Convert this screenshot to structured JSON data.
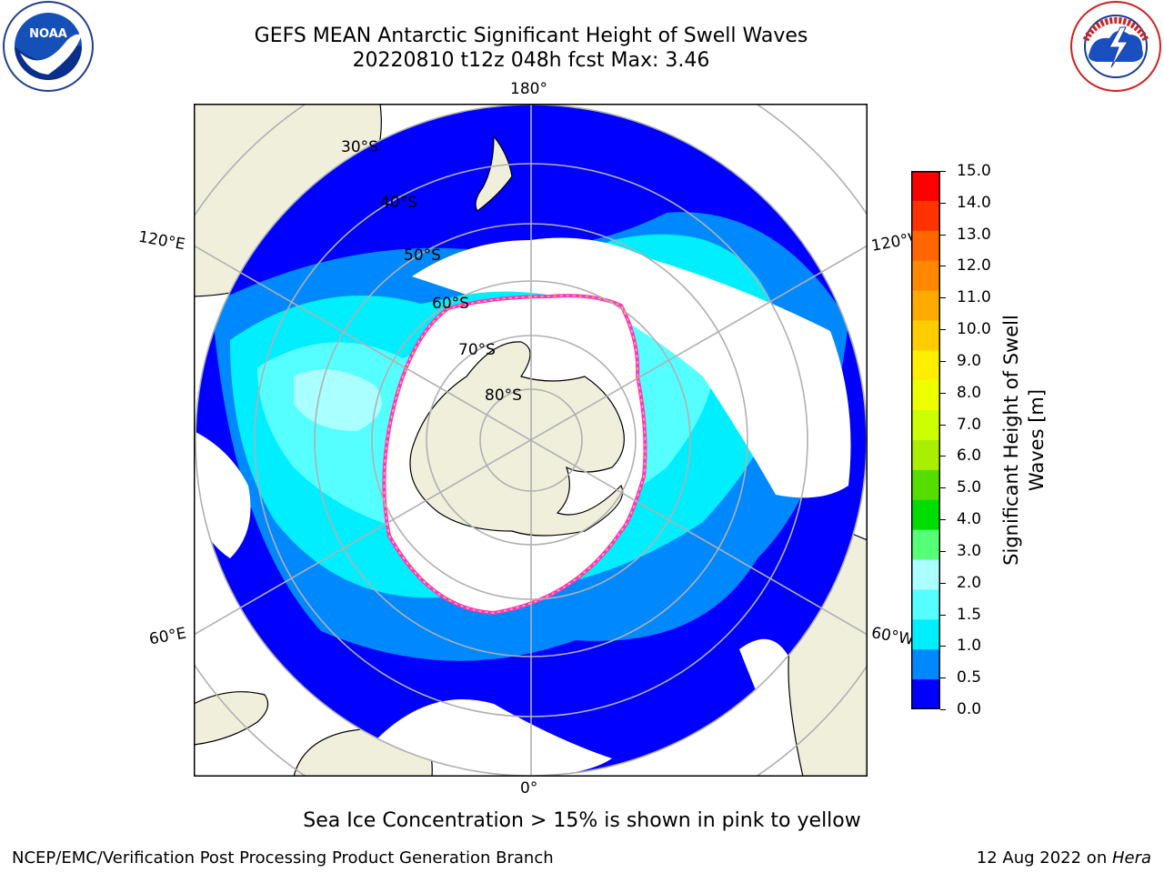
{
  "title": {
    "line1": "GEFS MEAN Antarctic Significant Height of Swell Waves",
    "line2": "20220810 t12z 048h fcst   Max: 3.46"
  },
  "map": {
    "projection": "south-polar-stereographic",
    "lon_labels": {
      "top": "180°",
      "bottom": "0°",
      "left_upper": "120°E",
      "left_lower": "60°E",
      "right_upper": "120°W",
      "right_lower": "60°W"
    },
    "lat_labels": [
      "30°S",
      "40°S",
      "50°S",
      "60°S",
      "70°S",
      "80°S"
    ],
    "colors": {
      "land": "#efefdc",
      "ice_free_none": "#ffffff",
      "sea_ice_edge": [
        "#ff33cc",
        "#ffcc33"
      ],
      "gridline": "#b0b0b0"
    }
  },
  "colorbar": {
    "label": "Significant Height of Swell Waves [m]",
    "ticks": [
      "15.0",
      "14.0",
      "13.0",
      "12.0",
      "11.0",
      "10.0",
      "9.0",
      "8.0",
      "7.0",
      "6.0",
      "5.0",
      "4.0",
      "3.0",
      "2.0",
      "1.5",
      "1.0",
      "0.5",
      "0.0"
    ],
    "bin_colors_top_to_bottom": [
      "#ff0000",
      "#ff3300",
      "#ff6600",
      "#ff8800",
      "#ffaa00",
      "#ffcc00",
      "#ffee00",
      "#eeff00",
      "#ccff00",
      "#aaee00",
      "#55dd00",
      "#00dd00",
      "#55ff77",
      "#aaffff",
      "#55ffff",
      "#00eeff",
      "#0088ff",
      "#0000ff"
    ]
  },
  "footnote": "Sea Ice Concentration > 15% is shown in pink to yellow",
  "credit_left": "NCEP/EMC/Verification Post Processing Product Generation Branch",
  "credit_right_prefix": "12 Aug 2022 on ",
  "credit_right_machine": "Hera",
  "logos": {
    "left": "noaa-logo",
    "right": "nws-logo"
  }
}
